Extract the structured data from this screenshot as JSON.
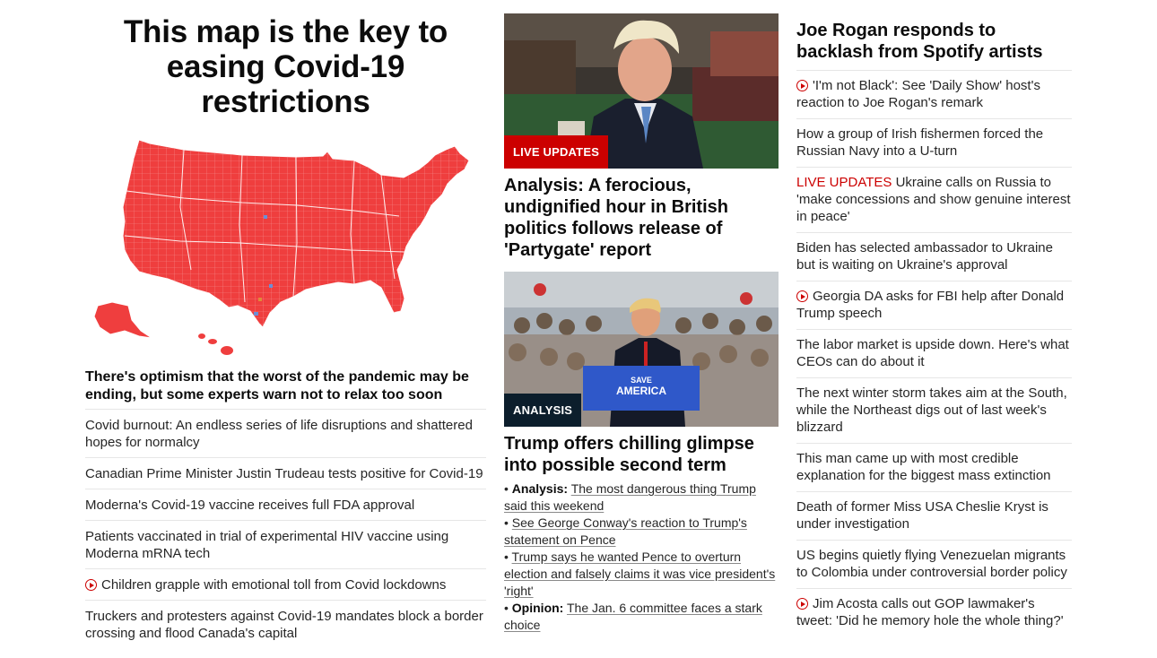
{
  "col1": {
    "headline": "This map is the key to easing Covid-19 restrictions",
    "map_icon": "us-map-illustration",
    "map_color": "#ef3e3e",
    "subheadline": "There's optimism that the worst of the pandemic may be ending, but some experts warn not to relax too soon",
    "items": [
      {
        "text": "Covid burnout: An endless series of life disruptions and shattered hopes for normalcy",
        "video": false
      },
      {
        "text": "Canadian Prime Minister Justin Trudeau tests positive for Covid-19",
        "video": false
      },
      {
        "text": "Moderna's Covid-19 vaccine receives full FDA approval",
        "video": false
      },
      {
        "text": "Patients vaccinated in trial of experimental HIV vaccine using Moderna mRNA tech",
        "video": false
      },
      {
        "text": "Children grapple with emotional toll from Covid lockdowns",
        "video": true
      },
      {
        "text": "Truckers and protesters against Covid-19 mandates block a border crossing and flood Canada's capital",
        "video": false
      }
    ]
  },
  "col2": {
    "card1": {
      "tag": "LIVE UPDATES",
      "headline": "Analysis: A ferocious, undignified hour in British politics follows release of 'Partygate' report"
    },
    "card2": {
      "tag": "ANALYSIS",
      "sign_text_1": "SAVE",
      "sign_text_2": "AMERICA",
      "headline": "Trump offers chilling glimpse into possible second term",
      "bullets": [
        {
          "prefix": "Analysis:",
          "text": "The most dangerous thing Trump said this weekend"
        },
        {
          "prefix": "",
          "text": "See George Conway's reaction to Trump's statement on Pence"
        },
        {
          "prefix": "",
          "text": "Trump says he wanted Pence to overturn election and falsely claims it was vice president's 'right'"
        },
        {
          "prefix": "Opinion:",
          "text": "The Jan. 6 committee faces a stark choice"
        }
      ]
    }
  },
  "col3": {
    "headline": "Joe Rogan responds to backlash from Spotify artists",
    "items": [
      {
        "live": "",
        "text": "'I'm not Black': See 'Daily Show' host's reaction to Joe Rogan's remark",
        "video": true
      },
      {
        "live": "",
        "text": "How a group of Irish fishermen forced the Russian Navy into a U-turn",
        "video": false
      },
      {
        "live": "LIVE UPDATES",
        "text": "Ukraine calls on Russia to 'make concessions and show genuine interest in peace'",
        "video": false
      },
      {
        "live": "",
        "text": "Biden has selected ambassador to Ukraine but is waiting on Ukraine's approval",
        "video": false
      },
      {
        "live": "",
        "text": "Georgia DA asks for FBI help after Donald Trump speech",
        "video": true
      },
      {
        "live": "",
        "text": "The labor market is upside down. Here's what CEOs can do about it",
        "video": false
      },
      {
        "live": "",
        "text": "The next winter storm takes aim at the South, while the Northeast digs out of last week's blizzard",
        "video": false
      },
      {
        "live": "",
        "text": "This man came up with most credible explanation for the biggest mass extinction",
        "video": false
      },
      {
        "live": "",
        "text": "Death of former Miss USA Cheslie Kryst is under investigation",
        "video": false
      },
      {
        "live": "",
        "text": "US begins quietly flying Venezuelan migrants to Colombia under controversial border policy",
        "video": false
      },
      {
        "live": "",
        "text": "Jim Acosta calls out GOP lawmaker's tweet: 'Did he memory hole the whole thing?'",
        "video": true
      }
    ]
  }
}
